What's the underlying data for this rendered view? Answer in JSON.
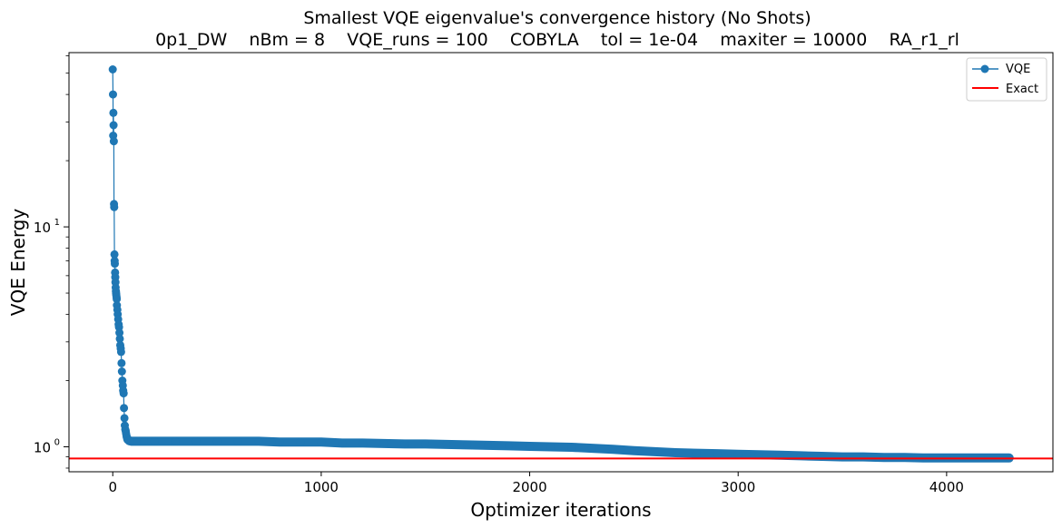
{
  "chart_data": {
    "type": "line",
    "title": "Smallest VQE eigenvalue's convergence history (No Shots)",
    "subtitle": "0p1_DW    nBm = 8    VQE_runs = 100    COBYLA    tol = 1e-04    maxiter = 10000    RA_r1_rl",
    "xlabel": "Optimizer iterations",
    "ylabel": "VQE Energy",
    "xscale": "linear",
    "yscale": "log",
    "xlim": [
      -210,
      4510
    ],
    "ylim": [
      0.77,
      62
    ],
    "xticks": [
      0,
      1000,
      2000,
      3000,
      4000
    ],
    "xtick_labels": [
      "0",
      "1000",
      "2000",
      "3000",
      "4000"
    ],
    "yticks": [
      1,
      10
    ],
    "ytick_labels": [
      "10^0",
      "10^1"
    ],
    "yminor_ticks": [
      0.8,
      0.9,
      2,
      3,
      4,
      5,
      6,
      7,
      8,
      9,
      20,
      30,
      40,
      50,
      60
    ],
    "grid": false,
    "legend": {
      "position": "top-right",
      "entries": [
        "VQE",
        "Exact"
      ]
    },
    "series": [
      {
        "name": "VQE",
        "color": "#1f77b4",
        "marker": "circle",
        "x": [
          0,
          1,
          2,
          3,
          4,
          5,
          6,
          7,
          8,
          9,
          10,
          11,
          12,
          13,
          14,
          15,
          16,
          17,
          18,
          19,
          20,
          22,
          24,
          26,
          28,
          30,
          32,
          34,
          36,
          38,
          40,
          42,
          44,
          46,
          48,
          50,
          52,
          54,
          56,
          58,
          60,
          62,
          64,
          66,
          68,
          70,
          75,
          80,
          90,
          100,
          120,
          150,
          200,
          300,
          400,
          500,
          600,
          700,
          800,
          900,
          1000,
          1100,
          1200,
          1300,
          1400,
          1500,
          1600,
          1700,
          1800,
          1900,
          2000,
          2100,
          2200,
          2300,
          2400,
          2500,
          2600,
          2700,
          2800,
          2900,
          3000,
          3100,
          3200,
          3300,
          3400,
          3500,
          3600,
          3700,
          3800,
          3900,
          4000,
          4100,
          4200,
          4300
        ],
        "y": [
          52,
          40,
          26,
          33,
          29,
          24.5,
          12.7,
          12.3,
          7.5,
          7.0,
          6.8,
          6.2,
          5.9,
          5.6,
          5.3,
          5.1,
          5.0,
          4.9,
          4.8,
          4.7,
          4.4,
          4.2,
          4.0,
          3.8,
          3.6,
          3.5,
          3.3,
          3.1,
          2.9,
          2.8,
          2.7,
          2.4,
          2.2,
          2.0,
          1.9,
          1.8,
          1.75,
          1.5,
          1.35,
          1.25,
          1.2,
          1.18,
          1.15,
          1.12,
          1.1,
          1.08,
          1.07,
          1.065,
          1.06,
          1.06,
          1.06,
          1.06,
          1.06,
          1.06,
          1.06,
          1.06,
          1.06,
          1.06,
          1.05,
          1.05,
          1.05,
          1.04,
          1.04,
          1.035,
          1.03,
          1.03,
          1.025,
          1.02,
          1.015,
          1.01,
          1.005,
          1.0,
          0.995,
          0.985,
          0.975,
          0.96,
          0.95,
          0.94,
          0.935,
          0.93,
          0.925,
          0.92,
          0.915,
          0.91,
          0.905,
          0.9,
          0.9,
          0.895,
          0.895,
          0.89,
          0.89,
          0.89,
          0.89,
          0.89
        ]
      },
      {
        "name": "Exact",
        "color": "#ff0000",
        "type": "hline",
        "y": 0.885
      }
    ]
  }
}
